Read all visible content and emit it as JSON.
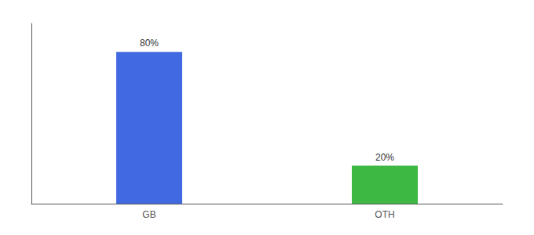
{
  "chart_data": {
    "type": "bar",
    "categories": [
      "GB",
      "OTH"
    ],
    "values": [
      80,
      20
    ],
    "colors": [
      "#4169e1",
      "#3cb843"
    ],
    "ylim": [
      0,
      95
    ],
    "data_labels": true,
    "value_labels": [
      "80%",
      "20%"
    ],
    "tick_labels": "x",
    "grid": false
  }
}
